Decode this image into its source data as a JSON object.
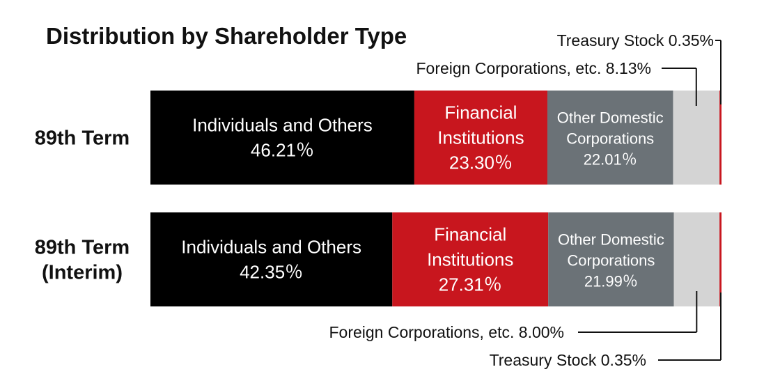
{
  "colors": {
    "individuals": "#000000",
    "financial": "#c8161e",
    "other_domestic": "#6b7277",
    "foreign": "#d4d4d4",
    "treasury": "#c8161e",
    "line": "#111111"
  },
  "chart_data": {
    "type": "bar",
    "orientation": "horizontal",
    "stacked": "100%",
    "title": "Distribution by Shareholder Type",
    "categories": [
      "89th Term",
      "89th Term (Interim)"
    ],
    "category_lines": [
      [
        "89th Term"
      ],
      [
        "89th Term",
        "(Interim)"
      ]
    ],
    "series": [
      {
        "key": "individuals",
        "name": "Individuals and Others",
        "name_lines": [
          "Individuals and Others"
        ],
        "values": [
          46.21,
          42.35
        ],
        "labels": [
          "46.21％",
          "42.35％"
        ]
      },
      {
        "key": "financial",
        "name": "Financial Institutions",
        "name_lines": [
          "Financial",
          "Institutions"
        ],
        "values": [
          23.3,
          27.31
        ],
        "labels": [
          "23.30％",
          "27.31％"
        ]
      },
      {
        "key": "other_domestic",
        "name": "Other Domestic Corporations",
        "name_lines": [
          "Other Domestic",
          "Corporations"
        ],
        "values": [
          22.01,
          21.99
        ],
        "labels": [
          "22.01％",
          "21.99％"
        ]
      },
      {
        "key": "foreign",
        "name": "Foreign Corporations, etc.",
        "values": [
          8.13,
          8.0
        ],
        "callouts": [
          "Foreign Corporations, etc.  8.13%",
          "Foreign Corporations, etc.  8.00%"
        ]
      },
      {
        "key": "treasury",
        "name": "Treasury Stock",
        "values": [
          0.35,
          0.35
        ],
        "callouts": [
          "Treasury Stock  0.35%",
          "Treasury Stock  0.35%"
        ]
      }
    ],
    "xlim": [
      0,
      100
    ],
    "grid": false,
    "legend": "none"
  }
}
